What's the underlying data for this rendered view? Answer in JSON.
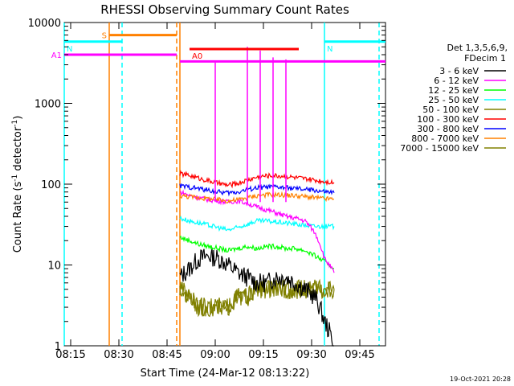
{
  "chart_data": {
    "type": "line",
    "title": "RHESSI Observing Summary Count Rates",
    "xlabel": "Start Time (24-Mar-12 08:13:22)",
    "ylabel_main": "Count Rate (s",
    "ylabel_sup1": "-1",
    "ylabel_mid": " detector",
    "ylabel_sup2": "-1",
    "ylabel_end": ")",
    "ylog": true,
    "ylim": [
      1,
      10000
    ],
    "xlim": [
      "08:13",
      "09:53"
    ],
    "x_ticks": [
      "08:15",
      "08:30",
      "08:45",
      "09:00",
      "09:15",
      "09:30",
      "09:45"
    ],
    "y_ticks": [
      "1",
      "10",
      "100",
      "1000",
      "10000"
    ],
    "legend_header": [
      "Det 1,3,5,6,9,",
      "FDecim 1"
    ],
    "legend_position": "right",
    "date_stamp": "19-Oct-2021 20:28",
    "series": [
      {
        "name": "3 - 6 keV",
        "color": "#000000",
        "x": [
          "08:49",
          "08:52",
          "08:55",
          "08:58",
          "09:01",
          "09:04",
          "09:07",
          "09:10",
          "09:13",
          "09:16",
          "09:19",
          "09:22",
          "09:25",
          "09:28",
          "09:31",
          "09:34",
          "09:37"
        ],
        "y": [
          7,
          9,
          12,
          13,
          12,
          10,
          8,
          7,
          6,
          6,
          7,
          7,
          6,
          5,
          4,
          2,
          1
        ]
      },
      {
        "name": "6 - 12 keV",
        "color": "#ff00ff",
        "x": [
          "08:49",
          "08:52",
          "08:55",
          "08:58",
          "09:01",
          "09:04",
          "09:07",
          "09:10",
          "09:13",
          "09:16",
          "09:19",
          "09:22",
          "09:25",
          "09:28",
          "09:31",
          "09:34",
          "09:37"
        ],
        "y": [
          80,
          72,
          68,
          64,
          62,
          60,
          62,
          58,
          52,
          48,
          44,
          40,
          38,
          35,
          25,
          12,
          8
        ]
      },
      {
        "name": "12 - 25 keV",
        "color": "#00ff00",
        "x": [
          "08:49",
          "08:52",
          "08:55",
          "08:58",
          "09:01",
          "09:04",
          "09:07",
          "09:10",
          "09:13",
          "09:16",
          "09:19",
          "09:22",
          "09:25",
          "09:28",
          "09:31",
          "09:34",
          "09:37"
        ],
        "y": [
          22,
          20,
          18,
          17,
          16,
          15,
          16,
          17,
          16,
          17,
          17,
          16,
          16,
          15,
          13,
          11,
          9
        ]
      },
      {
        "name": "25 - 50 keV",
        "color": "#00ffff",
        "x": [
          "08:49",
          "08:52",
          "08:55",
          "08:58",
          "09:01",
          "09:04",
          "09:07",
          "09:10",
          "09:13",
          "09:16",
          "09:19",
          "09:22",
          "09:25",
          "09:28",
          "09:31",
          "09:34",
          "09:37"
        ],
        "y": [
          38,
          35,
          33,
          31,
          29,
          27,
          29,
          32,
          35,
          35,
          34,
          33,
          32,
          31,
          30,
          30,
          30
        ]
      },
      {
        "name": "50 - 100 keV",
        "color": "#808000",
        "x": [
          "08:49",
          "08:52",
          "08:55",
          "08:58",
          "09:01",
          "09:04",
          "09:07",
          "09:10",
          "09:13",
          "09:16",
          "09:19",
          "09:22",
          "09:25",
          "09:28",
          "09:31",
          "09:34",
          "09:37"
        ],
        "y": [
          5,
          4,
          3,
          3,
          3,
          3,
          4,
          4,
          5,
          5,
          5,
          5,
          5,
          5,
          5,
          5,
          5
        ]
      },
      {
        "name": "100 - 300 keV",
        "color": "#ff0000",
        "x": [
          "08:49",
          "08:52",
          "08:55",
          "08:58",
          "09:01",
          "09:04",
          "09:07",
          "09:10",
          "09:13",
          "09:16",
          "09:19",
          "09:22",
          "09:25",
          "09:28",
          "09:31",
          "09:34",
          "09:37"
        ],
        "y": [
          135,
          128,
          118,
          110,
          102,
          97,
          102,
          112,
          122,
          127,
          127,
          125,
          120,
          116,
          112,
          108,
          105
        ]
      },
      {
        "name": "300 - 800 keV",
        "color": "#0000ff",
        "x": [
          "08:49",
          "08:52",
          "08:55",
          "08:58",
          "09:01",
          "09:04",
          "09:07",
          "09:10",
          "09:13",
          "09:16",
          "09:19",
          "09:22",
          "09:25",
          "09:28",
          "09:31",
          "09:34",
          "09:37"
        ],
        "y": [
          95,
          92,
          88,
          84,
          80,
          78,
          80,
          86,
          90,
          92,
          92,
          90,
          88,
          86,
          84,
          80,
          78
        ]
      },
      {
        "name": "800 - 7000 keV",
        "color": "#ff8000",
        "x": [
          "08:49",
          "08:52",
          "08:55",
          "08:58",
          "09:01",
          "09:04",
          "09:07",
          "09:10",
          "09:13",
          "09:16",
          "09:19",
          "09:22",
          "09:25",
          "09:28",
          "09:31",
          "09:34",
          "09:37"
        ],
        "y": [
          72,
          70,
          68,
          66,
          64,
          62,
          64,
          68,
          72,
          74,
          74,
          73,
          72,
          70,
          68,
          66,
          65
        ]
      },
      {
        "name": "7000 - 15000 keV",
        "color": "#808000",
        "x": [
          "08:49",
          "08:52",
          "08:55",
          "08:58",
          "09:01",
          "09:04",
          "09:07",
          "09:10",
          "09:13",
          "09:16",
          "09:19",
          "09:22",
          "09:25",
          "09:28",
          "09:31",
          "09:34",
          "09:37"
        ],
        "y": [
          5,
          4,
          3,
          3,
          3,
          3,
          4,
          4,
          5,
          5,
          5,
          5,
          5,
          5,
          5,
          5,
          5
        ]
      }
    ],
    "spikes": {
      "color": "#ff00ff",
      "x": [
        "09:00",
        "09:10",
        "09:14",
        "09:18",
        "09:22"
      ],
      "peak": [
        3200,
        5000,
        4500,
        3700,
        3500
      ]
    },
    "legend_colors": [
      "#000000",
      "#ff00ff",
      "#00ff00",
      "#00ffff",
      "#808000",
      "#ff0000",
      "#0000ff",
      "#ff8000",
      "#808000"
    ],
    "flags": [
      {
        "label": "S",
        "color": "#ff8000",
        "value": 7000,
        "x_start": "08:27",
        "x_end": "08:48"
      },
      {
        "label": "N",
        "color": "#00ffff",
        "value": 5800,
        "x_start": "08:13",
        "x_end": "08:31"
      },
      {
        "label": "N",
        "color": "#00ffff",
        "value": 5800,
        "x_start": "09:34",
        "x_end": "09:53"
      },
      {
        "label": "A0",
        "color": "#ff0000",
        "value": 4700,
        "x_start": "08:52",
        "x_end": "09:26"
      },
      {
        "label": "A1",
        "color": "#ff00ff",
        "value": 4000,
        "x_start": "08:13",
        "x_end": "08:48"
      },
      {
        "label": "",
        "color": "#ff00ff",
        "value": 3300,
        "x_start": "08:49",
        "x_end": "09:53"
      }
    ],
    "vlines": [
      {
        "color": "#00ffff",
        "x": "08:13",
        "style": "solid"
      },
      {
        "color": "#ff8000",
        "x": "08:27",
        "style": "solid"
      },
      {
        "color": "#00ffff",
        "x": "08:31",
        "style": "dashed"
      },
      {
        "color": "#ff8000",
        "x": "08:48",
        "style": "dashed"
      },
      {
        "color": "#ff8000",
        "x": "08:49",
        "style": "solid"
      },
      {
        "color": "#00ffff",
        "x": "09:34",
        "style": "solid"
      },
      {
        "color": "#00ffff",
        "x": "09:51",
        "style": "dashed"
      }
    ]
  }
}
